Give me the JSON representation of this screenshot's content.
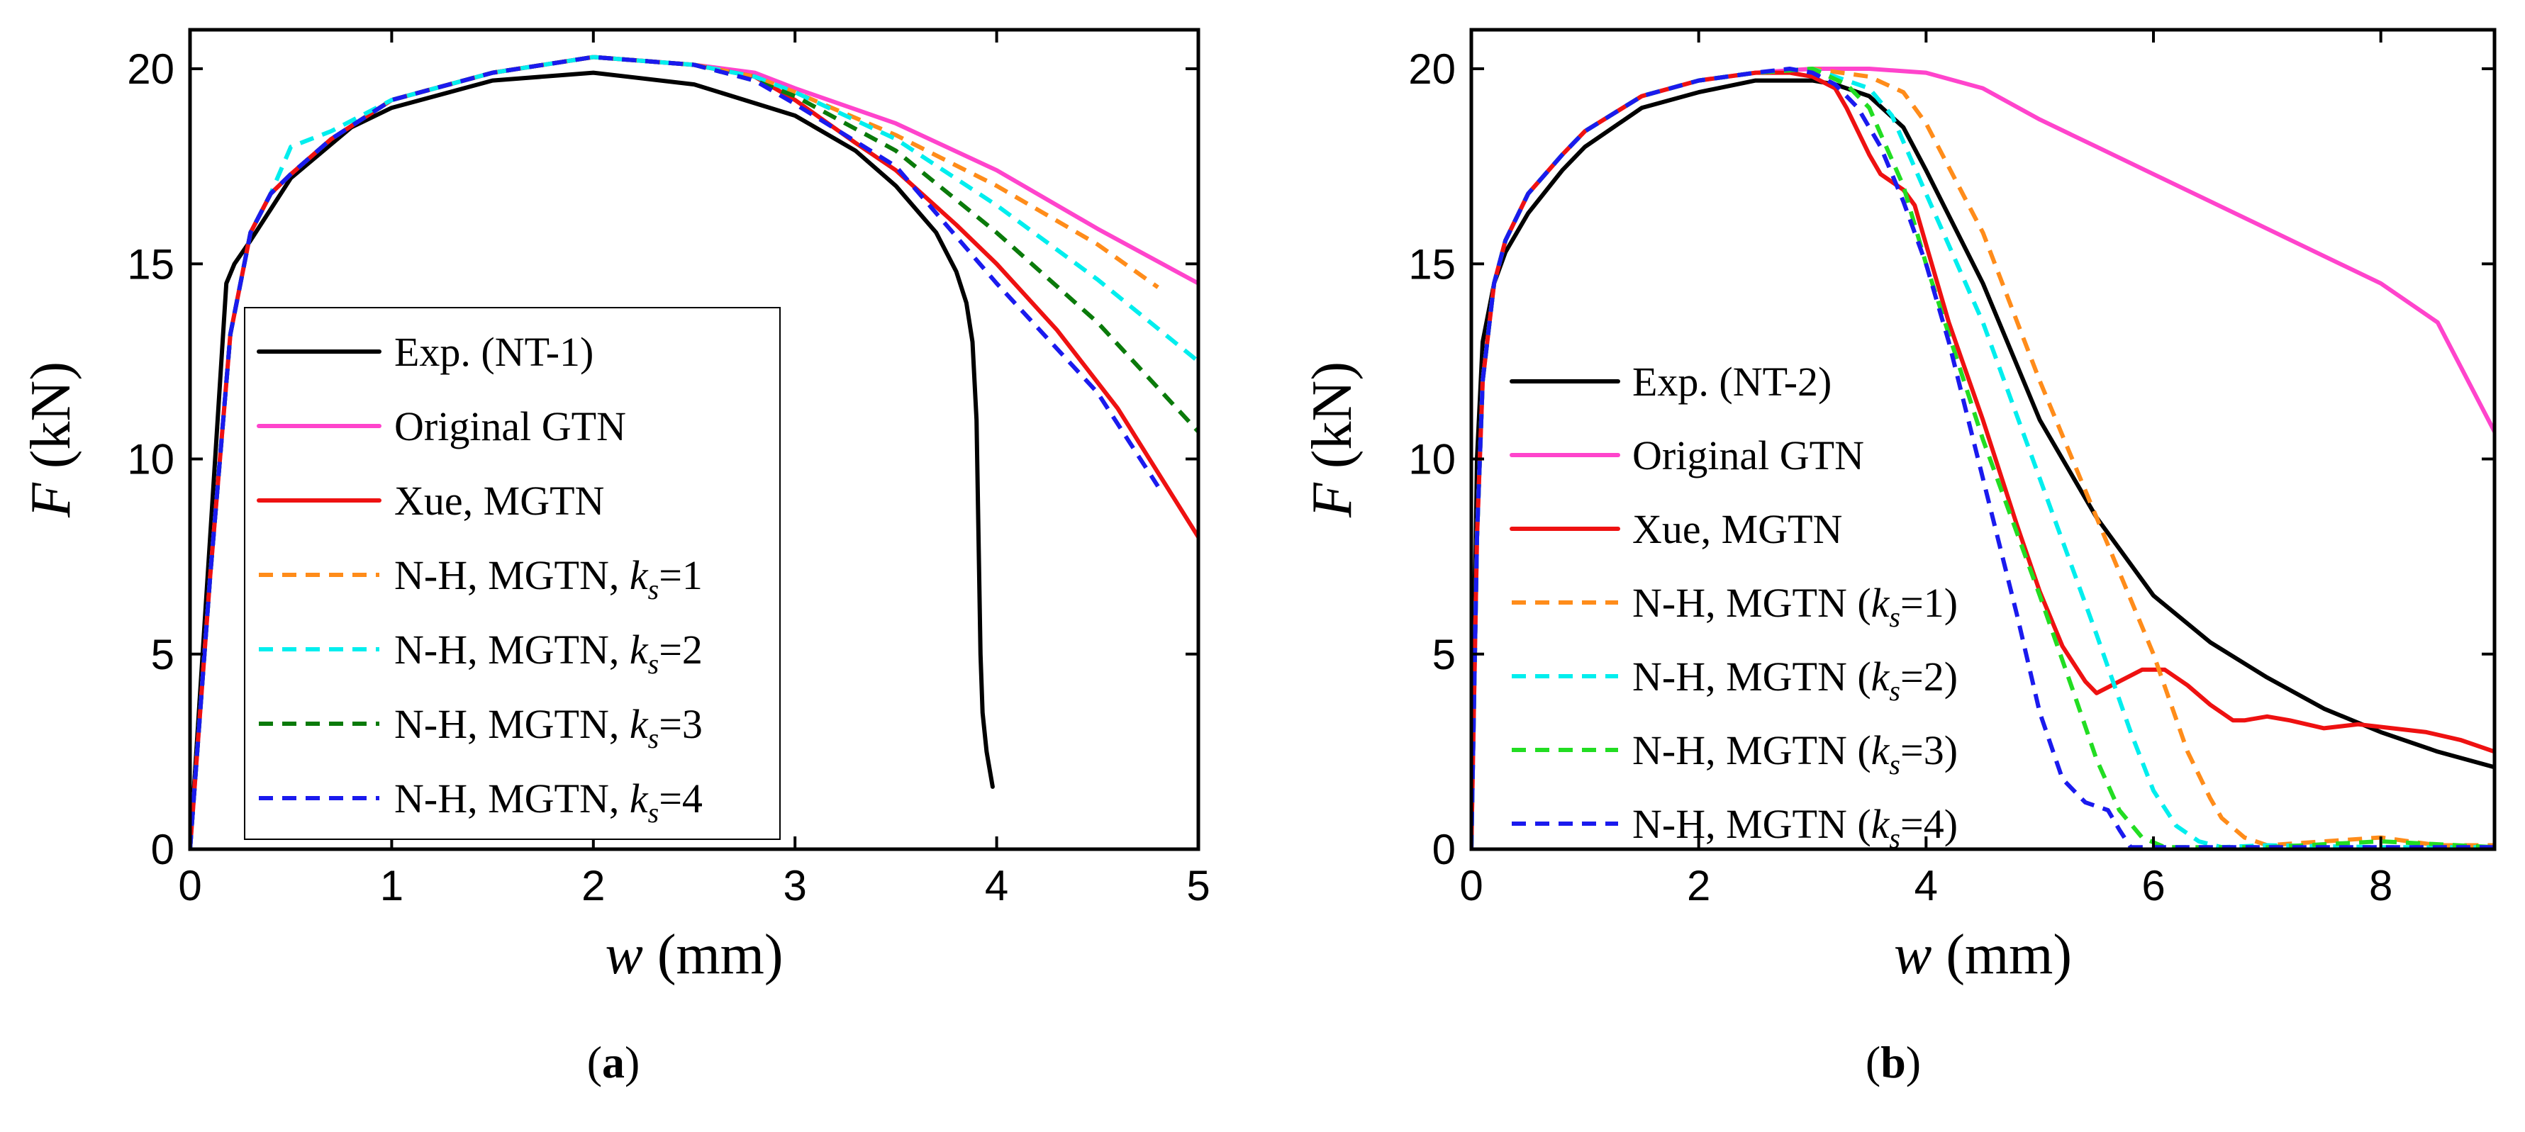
{
  "chart_data": [
    {
      "type": "line",
      "panel_label": "a",
      "xlabel_var": "w",
      "xlabel_unit": " (mm)",
      "ylabel_var": "F",
      "ylabel_unit": " (kN)",
      "xlim": [
        0,
        5
      ],
      "ylim": [
        0,
        21
      ],
      "xticks": [
        0,
        1,
        2,
        3,
        4,
        5
      ],
      "yticks": [
        0,
        5,
        10,
        15,
        20
      ],
      "legend_position": "bottom-left",
      "legend": [
        {
          "pre": "Exp. (NT-1)",
          "ks": "",
          "post": ""
        },
        {
          "pre": "Original GTN",
          "ks": "",
          "post": ""
        },
        {
          "pre": "Xue, MGTN",
          "ks": "",
          "post": ""
        },
        {
          "pre": "N-H, MGTN, ",
          "ks": "k",
          "sub": "s",
          "post": "=1"
        },
        {
          "pre": "N-H, MGTN, ",
          "ks": "k",
          "sub": "s",
          "post": "=2"
        },
        {
          "pre": "N-H, MGTN, ",
          "ks": "k",
          "sub": "s",
          "post": "=3"
        },
        {
          "pre": "N-H, MGTN, ",
          "ks": "k",
          "sub": "s",
          "post": "=4"
        }
      ],
      "series": [
        {
          "name": "Exp. (NT-1)",
          "color": "#000000",
          "dashed": false,
          "x": [
            0,
            0.1,
            0.18,
            0.22,
            0.3,
            0.5,
            0.8,
            1.0,
            1.5,
            2.0,
            2.5,
            3.0,
            3.3,
            3.5,
            3.7,
            3.8,
            3.85,
            3.88,
            3.9,
            3.91,
            3.92,
            3.93,
            3.95,
            3.98
          ],
          "y": [
            0,
            8,
            14.5,
            15.0,
            15.6,
            17.2,
            18.5,
            19.0,
            19.7,
            19.9,
            19.6,
            18.8,
            17.9,
            17.0,
            15.8,
            14.8,
            14.0,
            13.0,
            11.0,
            8.0,
            5.0,
            3.5,
            2.5,
            1.6
          ]
        },
        {
          "name": "Original GTN",
          "color": "#ff44cc",
          "dashed": false,
          "x": [
            0,
            0.1,
            0.2,
            0.3,
            0.4,
            0.5,
            0.7,
            1.0,
            1.5,
            2.0,
            2.5,
            2.8,
            3.0,
            3.5,
            4.0,
            4.5,
            5.0
          ],
          "y": [
            0,
            7,
            13.2,
            15.8,
            16.8,
            17.3,
            18.2,
            19.2,
            19.9,
            20.3,
            20.1,
            19.9,
            19.5,
            18.6,
            17.4,
            15.9,
            14.5
          ]
        },
        {
          "name": "Xue, MGTN",
          "color": "#ee1111",
          "dashed": false,
          "x": [
            0,
            0.1,
            0.2,
            0.3,
            0.4,
            0.5,
            0.7,
            1.0,
            1.5,
            2.0,
            2.5,
            2.8,
            3.0,
            3.3,
            3.5,
            3.8,
            4.0,
            4.3,
            4.6,
            5.0
          ],
          "y": [
            0,
            7,
            13.2,
            15.8,
            16.8,
            17.3,
            18.2,
            19.2,
            19.9,
            20.3,
            20.1,
            19.8,
            19.2,
            18.1,
            17.4,
            16.0,
            15.0,
            13.3,
            11.3,
            8.0
          ]
        },
        {
          "name": "N-H, MGTN, ks=1",
          "color": "#ff8c1a",
          "dashed": true,
          "x": [
            0,
            0.1,
            0.2,
            0.3,
            0.4,
            0.5,
            0.7,
            1.0,
            1.5,
            2.0,
            2.5,
            2.8,
            3.0,
            3.5,
            4.0,
            4.5,
            4.8
          ],
          "y": [
            0,
            7,
            13.2,
            15.8,
            16.8,
            17.3,
            18.2,
            19.2,
            19.9,
            20.3,
            20.1,
            19.8,
            19.4,
            18.3,
            17.0,
            15.5,
            14.4
          ]
        },
        {
          "name": "N-H, MGTN, ks=2",
          "color": "#00eeee",
          "dashed": true,
          "x": [
            0,
            0.1,
            0.2,
            0.3,
            0.4,
            0.5,
            0.7,
            1.0,
            1.5,
            2.0,
            2.5,
            2.8,
            3.0,
            3.5,
            4.0,
            4.5,
            5.0
          ],
          "y": [
            0,
            7,
            13.2,
            15.8,
            16.8,
            18.0,
            18.4,
            19.2,
            19.9,
            20.3,
            20.1,
            19.8,
            19.4,
            18.2,
            16.5,
            14.6,
            12.5
          ]
        },
        {
          "name": "N-H, MGTN, ks=3",
          "color": "#0a7a0a",
          "dashed": true,
          "x": [
            0,
            0.1,
            0.2,
            0.3,
            0.4,
            0.5,
            0.7,
            1.0,
            1.5,
            2.0,
            2.5,
            2.8,
            3.0,
            3.5,
            4.0,
            4.5,
            5.0
          ],
          "y": [
            0,
            7,
            13.2,
            15.8,
            16.8,
            17.3,
            18.2,
            19.2,
            19.9,
            20.3,
            20.1,
            19.7,
            19.3,
            17.9,
            15.8,
            13.5,
            10.7
          ]
        },
        {
          "name": "N-H, MGTN, ks=4",
          "color": "#1a1aee",
          "dashed": true,
          "x": [
            0,
            0.1,
            0.2,
            0.3,
            0.4,
            0.5,
            0.7,
            1.0,
            1.5,
            2.0,
            2.5,
            2.8,
            3.0,
            3.5,
            4.0,
            4.5,
            4.8
          ],
          "y": [
            0,
            7,
            13.2,
            15.8,
            16.8,
            17.3,
            18.2,
            19.2,
            19.9,
            20.3,
            20.1,
            19.7,
            19.1,
            17.5,
            14.5,
            11.7,
            9.3
          ]
        }
      ]
    },
    {
      "type": "line",
      "panel_label": "b",
      "xlabel_var": "w",
      "xlabel_unit": " (mm)",
      "ylabel_var": "F",
      "ylabel_unit": " (kN)",
      "xlim": [
        0,
        9
      ],
      "ylim": [
        0,
        21
      ],
      "xticks": [
        0,
        2,
        4,
        6,
        8
      ],
      "yticks": [
        0,
        5,
        10,
        15,
        20
      ],
      "legend_position": "bottom-left",
      "legend": [
        {
          "pre": "Exp. (NT-2)",
          "ks": "",
          "post": ""
        },
        {
          "pre": "Original GTN",
          "ks": "",
          "post": ""
        },
        {
          "pre": "Xue, MGTN",
          "ks": "",
          "post": ""
        },
        {
          "pre": "N-H, MGTN (",
          "ks": "k",
          "sub": "s",
          "post": "=1)"
        },
        {
          "pre": "N-H, MGTN (",
          "ks": "k",
          "sub": "s",
          "post": "=2)"
        },
        {
          "pre": "N-H, MGTN (",
          "ks": "k",
          "sub": "s",
          "post": "=3)"
        },
        {
          "pre": "N-H, MGTN (",
          "ks": "k",
          "sub": "s",
          "post": "=4)"
        }
      ],
      "series": [
        {
          "name": "Exp. (NT-2)",
          "color": "#000000",
          "dashed": false,
          "x": [
            0,
            0.05,
            0.1,
            0.2,
            0.3,
            0.5,
            0.8,
            1.0,
            1.5,
            2.0,
            2.5,
            3.0,
            3.2,
            3.5,
            3.8,
            4.0,
            4.5,
            5.0,
            5.5,
            6.0,
            6.5,
            7.0,
            7.5,
            8.0,
            8.5,
            9.0
          ],
          "y": [
            0,
            10,
            13,
            14.5,
            15.3,
            16.3,
            17.4,
            18.0,
            19.0,
            19.4,
            19.7,
            19.7,
            19.6,
            19.3,
            18.5,
            17.4,
            14.5,
            11.0,
            8.5,
            6.5,
            5.3,
            4.4,
            3.6,
            3.0,
            2.5,
            2.1
          ]
        },
        {
          "name": "Original GTN",
          "color": "#ff44cc",
          "dashed": false,
          "x": [
            0,
            0.05,
            0.1,
            0.2,
            0.3,
            0.5,
            0.8,
            1.0,
            1.5,
            2.0,
            2.5,
            3.0,
            3.5,
            4.0,
            4.5,
            5.0,
            5.5,
            6.0,
            6.5,
            7.0,
            7.5,
            8.0,
            8.5,
            9.0
          ],
          "y": [
            0,
            8,
            12,
            14.5,
            15.6,
            16.8,
            17.8,
            18.4,
            19.3,
            19.7,
            19.9,
            20.0,
            20.0,
            19.9,
            19.5,
            18.7,
            18.0,
            17.3,
            16.6,
            15.9,
            15.2,
            14.5,
            13.5,
            10.7
          ]
        },
        {
          "name": "Xue, MGTN",
          "color": "#ee1111",
          "dashed": false,
          "x": [
            0,
            0.05,
            0.1,
            0.2,
            0.3,
            0.5,
            0.8,
            1.0,
            1.5,
            2.0,
            2.5,
            2.8,
            3.0,
            3.2,
            3.3,
            3.4,
            3.5,
            3.6,
            3.7,
            3.8,
            3.9,
            4.0,
            4.2,
            4.5,
            4.8,
            5.0,
            5.2,
            5.4,
            5.5,
            5.7,
            5.9,
            6.1,
            6.3,
            6.5,
            6.7,
            6.8,
            7.0,
            7.2,
            7.5,
            7.8,
            8.1,
            8.4,
            8.7,
            9.0
          ],
          "y": [
            0,
            8,
            12,
            14.5,
            15.6,
            16.8,
            17.8,
            18.4,
            19.3,
            19.7,
            19.9,
            19.9,
            19.8,
            19.5,
            19.0,
            18.4,
            17.8,
            17.3,
            17.1,
            16.9,
            16.5,
            15.5,
            13.5,
            11.0,
            8.3,
            6.6,
            5.2,
            4.3,
            4.0,
            4.3,
            4.6,
            4.6,
            4.2,
            3.7,
            3.3,
            3.3,
            3.4,
            3.3,
            3.1,
            3.2,
            3.1,
            3.0,
            2.8,
            2.5
          ]
        },
        {
          "name": "N-H, MGTN (ks=1)",
          "color": "#ff8c1a",
          "dashed": true,
          "x": [
            0,
            0.05,
            0.1,
            0.2,
            0.3,
            0.5,
            0.8,
            1.0,
            1.5,
            2.0,
            2.5,
            3.0,
            3.5,
            3.8,
            4.0,
            4.5,
            5.0,
            5.5,
            6.0,
            6.3,
            6.5,
            6.6,
            6.8,
            7.0,
            7.5,
            8.0,
            8.5,
            9.0
          ],
          "y": [
            0,
            8,
            12,
            14.5,
            15.6,
            16.8,
            17.8,
            18.4,
            19.3,
            19.7,
            19.9,
            20.0,
            19.8,
            19.4,
            18.6,
            15.8,
            12.0,
            8.5,
            5.0,
            2.5,
            1.3,
            0.8,
            0.3,
            0.1,
            0.2,
            0.3,
            0.1,
            0.1
          ]
        },
        {
          "name": "N-H, MGTN (ks=2)",
          "color": "#00eeee",
          "dashed": true,
          "x": [
            0,
            0.05,
            0.1,
            0.2,
            0.3,
            0.5,
            0.8,
            1.0,
            1.5,
            2.0,
            2.5,
            3.0,
            3.5,
            3.7,
            4.0,
            4.5,
            5.0,
            5.5,
            5.8,
            6.0,
            6.2,
            6.4,
            6.6,
            7.0,
            8.0,
            9.0
          ],
          "y": [
            0,
            8,
            12,
            14.5,
            15.6,
            16.8,
            17.8,
            18.4,
            19.3,
            19.7,
            19.9,
            20.0,
            19.5,
            18.8,
            16.8,
            13.5,
            9.5,
            5.5,
            3.0,
            1.5,
            0.6,
            0.2,
            0.05,
            0.1,
            0.05,
            0.05
          ]
        },
        {
          "name": "N-H, MGTN (ks=3)",
          "color": "#22dd22",
          "dashed": true,
          "x": [
            0,
            0.05,
            0.1,
            0.2,
            0.3,
            0.5,
            0.8,
            1.0,
            1.5,
            2.0,
            2.5,
            3.0,
            3.3,
            3.5,
            3.8,
            4.0,
            4.5,
            5.0,
            5.3,
            5.5,
            5.7,
            5.9,
            6.1,
            6.3,
            7.0,
            8.0,
            9.0
          ],
          "y": [
            0,
            8,
            12,
            14.5,
            15.6,
            16.8,
            17.8,
            18.4,
            19.3,
            19.7,
            19.9,
            20.0,
            19.6,
            19.0,
            17.0,
            15.0,
            10.5,
            6.5,
            4.0,
            2.3,
            1.0,
            0.3,
            0.05,
            0.05,
            0.05,
            0.2,
            0.05
          ]
        },
        {
          "name": "N-H, MGTN (ks=4)",
          "color": "#1a1aee",
          "dashed": true,
          "x": [
            0,
            0.05,
            0.1,
            0.2,
            0.3,
            0.5,
            0.8,
            1.0,
            1.5,
            2.0,
            2.5,
            2.8,
            3.0,
            3.2,
            3.4,
            3.6,
            3.8,
            4.0,
            4.2,
            4.5,
            4.8,
            5.0,
            5.2,
            5.4,
            5.6,
            5.7,
            5.8,
            6.0,
            7.0,
            8.0,
            9.0
          ],
          "y": [
            0,
            8,
            12,
            14.5,
            15.6,
            16.8,
            17.8,
            18.4,
            19.3,
            19.7,
            19.9,
            20.0,
            19.9,
            19.6,
            19.0,
            18.0,
            16.6,
            15.0,
            13.0,
            9.5,
            6.0,
            3.5,
            1.8,
            1.2,
            1.0,
            0.5,
            0.05,
            0.05,
            0.05,
            0.05,
            0.05
          ]
        }
      ]
    }
  ]
}
